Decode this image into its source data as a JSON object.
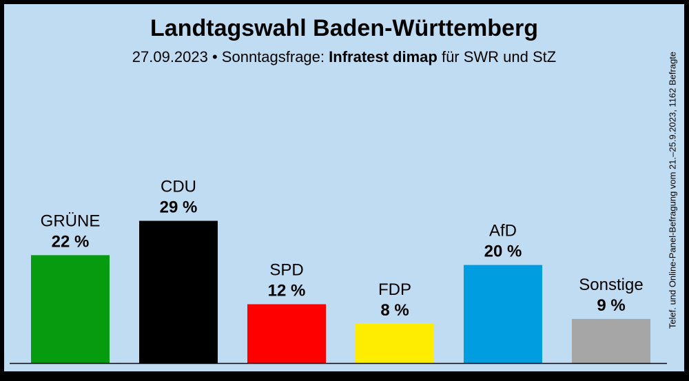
{
  "header": {
    "title": "Landtagswahl Baden-Württemberg",
    "subtitle_pre": "27.09.2023 • Sonntagsfrage: ",
    "subtitle_institute": "Infratest dimap",
    "subtitle_post": " für SWR und StZ"
  },
  "note": "Telef. und Online-Panel-Befragung vom 21.–25.9.2023, 1162 Befragte",
  "chart_data": {
    "type": "bar",
    "title": "Landtagswahl Baden-Württemberg",
    "categories": [
      "GRÜNE",
      "CDU",
      "SPD",
      "FDP",
      "AfD",
      "Sonstige"
    ],
    "values": [
      22,
      29,
      12,
      8,
      20,
      9
    ],
    "value_labels": [
      "22 %",
      "29 %",
      "12 %",
      "8 %",
      "20 %",
      "9 %"
    ],
    "colors": [
      "#079b10",
      "#000000",
      "#ff0000",
      "#ffed00",
      "#009ee0",
      "#a6a6a6"
    ],
    "xlabel": "",
    "ylabel": "",
    "ylim": [
      0,
      30
    ],
    "grid": false,
    "legend": "none"
  }
}
